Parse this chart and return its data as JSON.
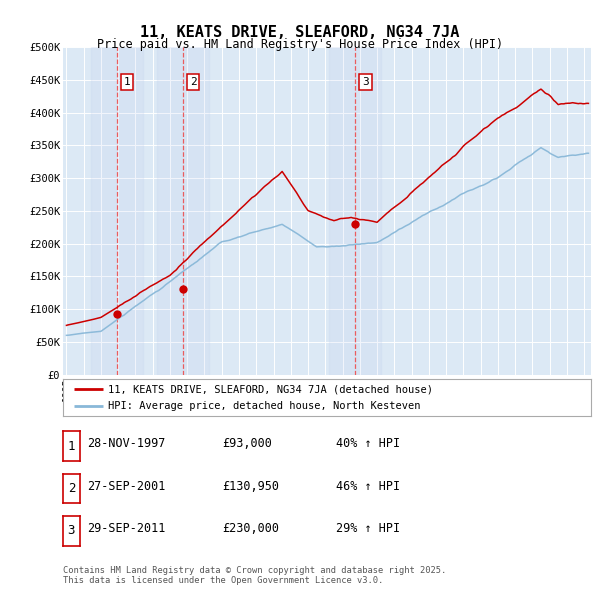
{
  "title": "11, KEATS DRIVE, SLEAFORD, NG34 7JA",
  "subtitle": "Price paid vs. HM Land Registry's House Price Index (HPI)",
  "ylim": [
    0,
    500000
  ],
  "yticks": [
    0,
    50000,
    100000,
    150000,
    200000,
    250000,
    300000,
    350000,
    400000,
    450000,
    500000
  ],
  "ytick_labels": [
    "£0",
    "£50K",
    "£100K",
    "£150K",
    "£200K",
    "£250K",
    "£300K",
    "£350K",
    "£400K",
    "£450K",
    "£500K"
  ],
  "year_start": 1995,
  "year_end": 2025,
  "sale1_date": 1997.91,
  "sale1_price": 93000,
  "sale2_date": 2001.74,
  "sale2_price": 130950,
  "sale3_date": 2011.74,
  "sale3_price": 230000,
  "legend_line1": "11, KEATS DRIVE, SLEAFORD, NG34 7JA (detached house)",
  "legend_line2": "HPI: Average price, detached house, North Kesteven",
  "table_rows": [
    [
      "1",
      "28-NOV-1997",
      "£93,000",
      "40% ↑ HPI"
    ],
    [
      "2",
      "27-SEP-2001",
      "£130,950",
      "46% ↑ HPI"
    ],
    [
      "3",
      "29-SEP-2011",
      "£230,000",
      "29% ↑ HPI"
    ]
  ],
  "footer": "Contains HM Land Registry data © Crown copyright and database right 2025.\nThis data is licensed under the Open Government Licence v3.0.",
  "hpi_color": "#89b8d8",
  "price_color": "#cc0000",
  "vline_color": "#ee4444",
  "marker_color": "#cc0000",
  "bg_color": "#dce9f5",
  "grid_color": "#ffffff"
}
